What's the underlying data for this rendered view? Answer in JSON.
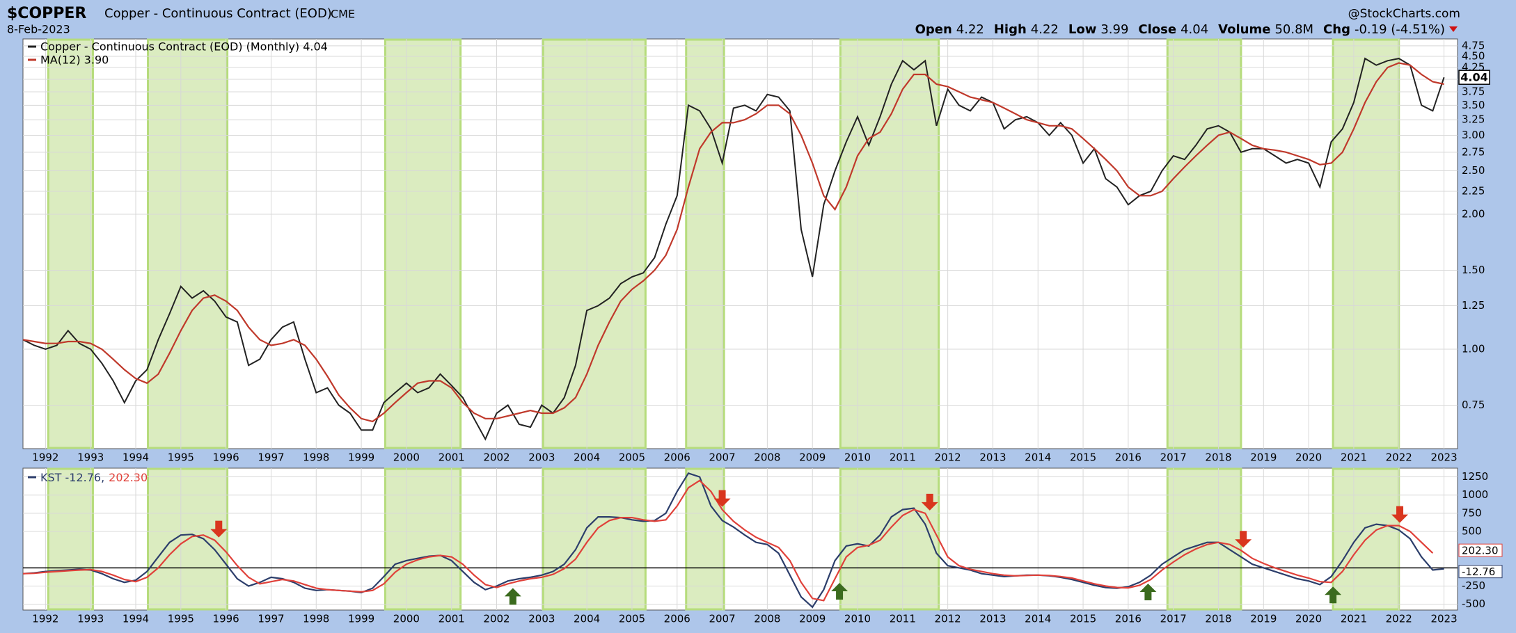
{
  "header": {
    "symbol": "$COPPER",
    "name": "Copper - Continuous Contract (EOD)",
    "exchange": "CME",
    "date": "8-Feb-2023",
    "credit": "@StockCharts.com",
    "quote": [
      {
        "label": "Open",
        "value": "4.22"
      },
      {
        "label": "High",
        "value": "4.22"
      },
      {
        "label": "Low",
        "value": "3.99"
      },
      {
        "label": "Close",
        "value": "4.04"
      },
      {
        "label": "Volume",
        "value": "50.8M"
      },
      {
        "label": "Chg",
        "value": "-0.19 (-4.51%)"
      }
    ]
  },
  "chart_data": [
    {
      "type": "line",
      "log_scale": true,
      "grid": true,
      "x": [
        1991.5,
        1991.75,
        1992,
        1992.25,
        1992.5,
        1992.75,
        1993,
        1993.25,
        1993.5,
        1993.75,
        1994,
        1994.25,
        1994.5,
        1994.75,
        1995,
        1995.25,
        1995.5,
        1995.75,
        1996,
        1996.25,
        1996.5,
        1996.75,
        1997,
        1997.25,
        1997.5,
        1997.75,
        1998,
        1998.25,
        1998.5,
        1998.75,
        1999,
        1999.25,
        1999.5,
        1999.75,
        2000,
        2000.25,
        2000.5,
        2000.75,
        2001,
        2001.25,
        2001.5,
        2001.75,
        2002,
        2002.25,
        2002.5,
        2002.75,
        2003,
        2003.25,
        2003.5,
        2003.75,
        2004,
        2004.25,
        2004.5,
        2004.75,
        2005,
        2005.25,
        2005.5,
        2005.75,
        2006,
        2006.25,
        2006.5,
        2006.75,
        2007,
        2007.25,
        2007.5,
        2007.75,
        2008,
        2008.25,
        2008.5,
        2008.75,
        2009,
        2009.25,
        2009.5,
        2009.75,
        2010,
        2010.25,
        2010.5,
        2010.75,
        2011,
        2011.25,
        2011.5,
        2011.75,
        2012,
        2012.25,
        2012.5,
        2012.75,
        2013,
        2013.25,
        2013.5,
        2013.75,
        2014,
        2014.25,
        2014.5,
        2014.75,
        2015,
        2015.25,
        2015.5,
        2015.75,
        2016,
        2016.25,
        2016.5,
        2016.75,
        2017,
        2017.25,
        2017.5,
        2017.75,
        2018,
        2018.25,
        2018.5,
        2018.75,
        2019,
        2019.25,
        2019.5,
        2019.75,
        2020,
        2020.25,
        2020.5,
        2020.75,
        2021,
        2021.25,
        2021.5,
        2021.75,
        2022,
        2022.25,
        2022.5,
        2022.75,
        2023
      ],
      "xlim": [
        1991.5,
        2023.3
      ],
      "xticks": [
        1992,
        1993,
        1994,
        1995,
        1996,
        1997,
        1998,
        1999,
        2000,
        2001,
        2002,
        2003,
        2004,
        2005,
        2006,
        2007,
        2008,
        2009,
        2010,
        2011,
        2012,
        2013,
        2014,
        2015,
        2016,
        2017,
        2018,
        2019,
        2020,
        2021,
        2022,
        2023
      ],
      "ylim": [
        0.6,
        4.92
      ],
      "yticks": [
        0.75,
        {
          "value": 1,
          "label": "1.00"
        },
        1.25,
        {
          "value": 1.5,
          "label": "1.50"
        },
        {
          "value": 2,
          "label": "2.00"
        },
        2.25,
        {
          "value": 2.5,
          "label": "2.50"
        },
        2.75,
        {
          "value": 3,
          "label": "3.00"
        },
        3.25,
        {
          "value": 3.5,
          "label": "3.50"
        },
        3.75,
        {
          "value": 4,
          "label": "4.00"
        },
        4.25,
        {
          "value": 4.5,
          "label": "4.50"
        },
        4.75
      ],
      "series": [
        {
          "name": "Copper - Continuous Contract (EOD) (Monthly) 4.04",
          "color": "#222222",
          "values": [
            1.05,
            1.02,
            1.0,
            1.02,
            1.1,
            1.03,
            1.0,
            0.93,
            0.85,
            0.76,
            0.85,
            0.9,
            1.05,
            1.2,
            1.38,
            1.3,
            1.35,
            1.28,
            1.18,
            1.15,
            0.92,
            0.95,
            1.05,
            1.12,
            1.15,
            0.95,
            0.8,
            0.82,
            0.75,
            0.72,
            0.66,
            0.66,
            0.76,
            0.8,
            0.84,
            0.8,
            0.82,
            0.88,
            0.83,
            0.78,
            0.7,
            0.63,
            0.72,
            0.75,
            0.68,
            0.67,
            0.75,
            0.72,
            0.78,
            0.92,
            1.22,
            1.25,
            1.3,
            1.4,
            1.45,
            1.48,
            1.6,
            1.9,
            2.2,
            3.5,
            3.4,
            3.1,
            2.6,
            3.45,
            3.5,
            3.4,
            3.7,
            3.65,
            3.4,
            1.85,
            1.45,
            2.1,
            2.5,
            2.9,
            3.3,
            2.85,
            3.3,
            3.9,
            4.4,
            4.2,
            4.4,
            3.15,
            3.8,
            3.5,
            3.4,
            3.65,
            3.55,
            3.1,
            3.25,
            3.3,
            3.2,
            3.0,
            3.2,
            3.0,
            2.6,
            2.8,
            2.4,
            2.3,
            2.1,
            2.2,
            2.25,
            2.5,
            2.7,
            2.65,
            2.85,
            3.1,
            3.15,
            3.05,
            2.75,
            2.8,
            2.8,
            2.7,
            2.6,
            2.65,
            2.6,
            2.3,
            2.9,
            3.1,
            3.55,
            4.45,
            4.3,
            4.4,
            4.45,
            4.3,
            3.5,
            3.4,
            4.04
          ]
        },
        {
          "name": "MA(12) 3.90",
          "color": "#c0392b",
          "values": [
            1.05,
            1.04,
            1.03,
            1.03,
            1.04,
            1.04,
            1.03,
            1.0,
            0.95,
            0.9,
            0.86,
            0.84,
            0.88,
            0.98,
            1.1,
            1.22,
            1.3,
            1.32,
            1.28,
            1.22,
            1.12,
            1.05,
            1.02,
            1.03,
            1.05,
            1.02,
            0.95,
            0.87,
            0.79,
            0.74,
            0.7,
            0.69,
            0.72,
            0.76,
            0.8,
            0.84,
            0.85,
            0.85,
            0.82,
            0.76,
            0.72,
            0.7,
            0.7,
            0.71,
            0.72,
            0.73,
            0.72,
            0.72,
            0.74,
            0.78,
            0.88,
            1.02,
            1.15,
            1.28,
            1.36,
            1.42,
            1.5,
            1.62,
            1.85,
            2.3,
            2.8,
            3.05,
            3.2,
            3.2,
            3.25,
            3.35,
            3.5,
            3.5,
            3.35,
            3.0,
            2.6,
            2.2,
            2.05,
            2.3,
            2.7,
            2.95,
            3.05,
            3.35,
            3.8,
            4.1,
            4.1,
            3.9,
            3.85,
            3.75,
            3.65,
            3.6,
            3.55,
            3.45,
            3.35,
            3.25,
            3.2,
            3.15,
            3.15,
            3.1,
            2.95,
            2.8,
            2.65,
            2.5,
            2.3,
            2.2,
            2.2,
            2.25,
            2.4,
            2.55,
            2.7,
            2.85,
            3.0,
            3.05,
            2.95,
            2.85,
            2.8,
            2.78,
            2.75,
            2.7,
            2.65,
            2.58,
            2.6,
            2.75,
            3.1,
            3.55,
            3.95,
            4.25,
            4.35,
            4.3,
            4.1,
            3.95,
            3.9
          ]
        }
      ],
      "end_label": "4.04",
      "shaded_periods": [
        [
          1992.06,
          1993.05
        ],
        [
          1994.27,
          1996.03
        ],
        [
          1999.53,
          2001.2
        ],
        [
          2003.03,
          2005.3
        ],
        [
          2006.2,
          2007.04
        ],
        [
          2009.62,
          2011.8
        ],
        [
          2016.87,
          2018.5
        ],
        [
          2020.54,
          2022.0
        ]
      ]
    },
    {
      "type": "line",
      "grid": true,
      "ylim": [
        -580,
        1370
      ],
      "yticks": [
        -500,
        -250,
        500,
        750,
        1000,
        1250
      ],
      "hline": 0,
      "legend": [
        "KST -12.76,",
        "202.30"
      ],
      "end_labels": [
        "202.30",
        "-12.76"
      ],
      "series": [
        {
          "color": "#2c3e6b",
          "values": [
            -80,
            -70,
            -50,
            -40,
            -30,
            -20,
            -30,
            -80,
            -150,
            -200,
            -170,
            -50,
            150,
            350,
            450,
            460,
            400,
            250,
            50,
            -150,
            -250,
            -200,
            -130,
            -150,
            -200,
            -280,
            -310,
            -300,
            -310,
            -320,
            -340,
            -280,
            -120,
            50,
            100,
            130,
            160,
            170,
            100,
            -50,
            -200,
            -300,
            -250,
            -180,
            -150,
            -130,
            -100,
            -50,
            50,
            250,
            550,
            700,
            700,
            690,
            660,
            640,
            650,
            750,
            1050,
            1300,
            1250,
            850,
            650,
            560,
            450,
            350,
            320,
            200,
            -100,
            -400,
            -540,
            -300,
            100,
            300,
            330,
            300,
            450,
            700,
            800,
            820,
            600,
            200,
            30,
            0,
            -30,
            -80,
            -100,
            -120,
            -110,
            -100,
            -100,
            -110,
            -130,
            -160,
            -200,
            -240,
            -270,
            -280,
            -260,
            -200,
            -100,
            50,
            150,
            250,
            300,
            350,
            350,
            250,
            150,
            50,
            0,
            -50,
            -100,
            -150,
            -180,
            -230,
            -120,
            100,
            350,
            550,
            600,
            580,
            520,
            400,
            150,
            -30,
            -12.76
          ]
        },
        {
          "color": "#e0413a",
          "values": [
            -80,
            -75,
            -60,
            -50,
            -40,
            -30,
            -25,
            -50,
            -100,
            -160,
            -190,
            -130,
            0,
            180,
            330,
            430,
            450,
            380,
            220,
            30,
            -130,
            -220,
            -190,
            -160,
            -180,
            -230,
            -280,
            -300,
            -310,
            -320,
            -330,
            -310,
            -220,
            -60,
            50,
            110,
            150,
            170,
            150,
            50,
            -100,
            -230,
            -270,
            -220,
            -180,
            -150,
            -130,
            -90,
            -10,
            120,
            350,
            550,
            650,
            690,
            690,
            660,
            640,
            660,
            850,
            1100,
            1200,
            1050,
            800,
            640,
            520,
            420,
            350,
            280,
            100,
            -200,
            -420,
            -450,
            -150,
            150,
            280,
            310,
            380,
            560,
            720,
            800,
            750,
            450,
            150,
            30,
            -20,
            -50,
            -80,
            -100,
            -110,
            -105,
            -100,
            -105,
            -120,
            -140,
            -180,
            -220,
            -250,
            -270,
            -275,
            -240,
            -160,
            -30,
            80,
            180,
            260,
            320,
            350,
            320,
            240,
            130,
            60,
            0,
            -50,
            -100,
            -140,
            -190,
            -200,
            -50,
            180,
            380,
            520,
            580,
            580,
            500,
            350,
            202.3
          ]
        }
      ],
      "sell_signals": [
        1995.84,
        2007.0,
        2011.6,
        2018.55,
        2022.02
      ],
      "buy_signals": [
        2002.36,
        2009.6,
        2016.44,
        2020.54
      ]
    }
  ]
}
